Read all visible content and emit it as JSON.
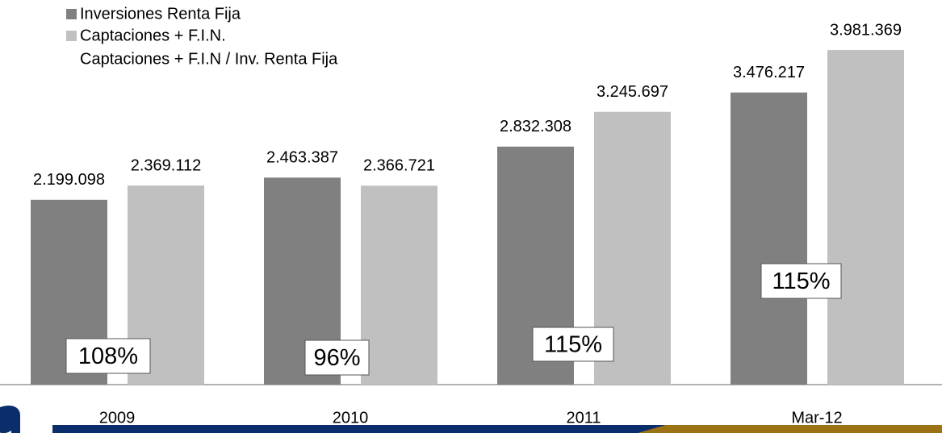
{
  "chart_data": {
    "type": "bar",
    "categories": [
      "2009",
      "2010",
      "2011",
      "Mar-12"
    ],
    "ylim": [
      0,
      4500000
    ],
    "series": [
      {
        "name": "Inversiones Renta Fija",
        "color": "#808080",
        "values": [
          2199098,
          2463387,
          2832308,
          3476217
        ],
        "value_labels": [
          "2.199.098",
          "2.463.387",
          "2.832.308",
          "3.476.217"
        ]
      },
      {
        "name": "Captaciones + F.I.N.",
        "color": "#c0c0c0",
        "values": [
          2369112,
          2366721,
          3245697,
          3981369
        ],
        "value_labels": [
          "2.369.112",
          "2.366.721",
          "3.245.697",
          "3.981.369"
        ]
      },
      {
        "name": "Captaciones + F.I.N / Inv. Renta Fija",
        "values": [
          108,
          96,
          115,
          115
        ],
        "value_labels": [
          "108%",
          "96%",
          "115%",
          "115%"
        ]
      }
    ]
  }
}
